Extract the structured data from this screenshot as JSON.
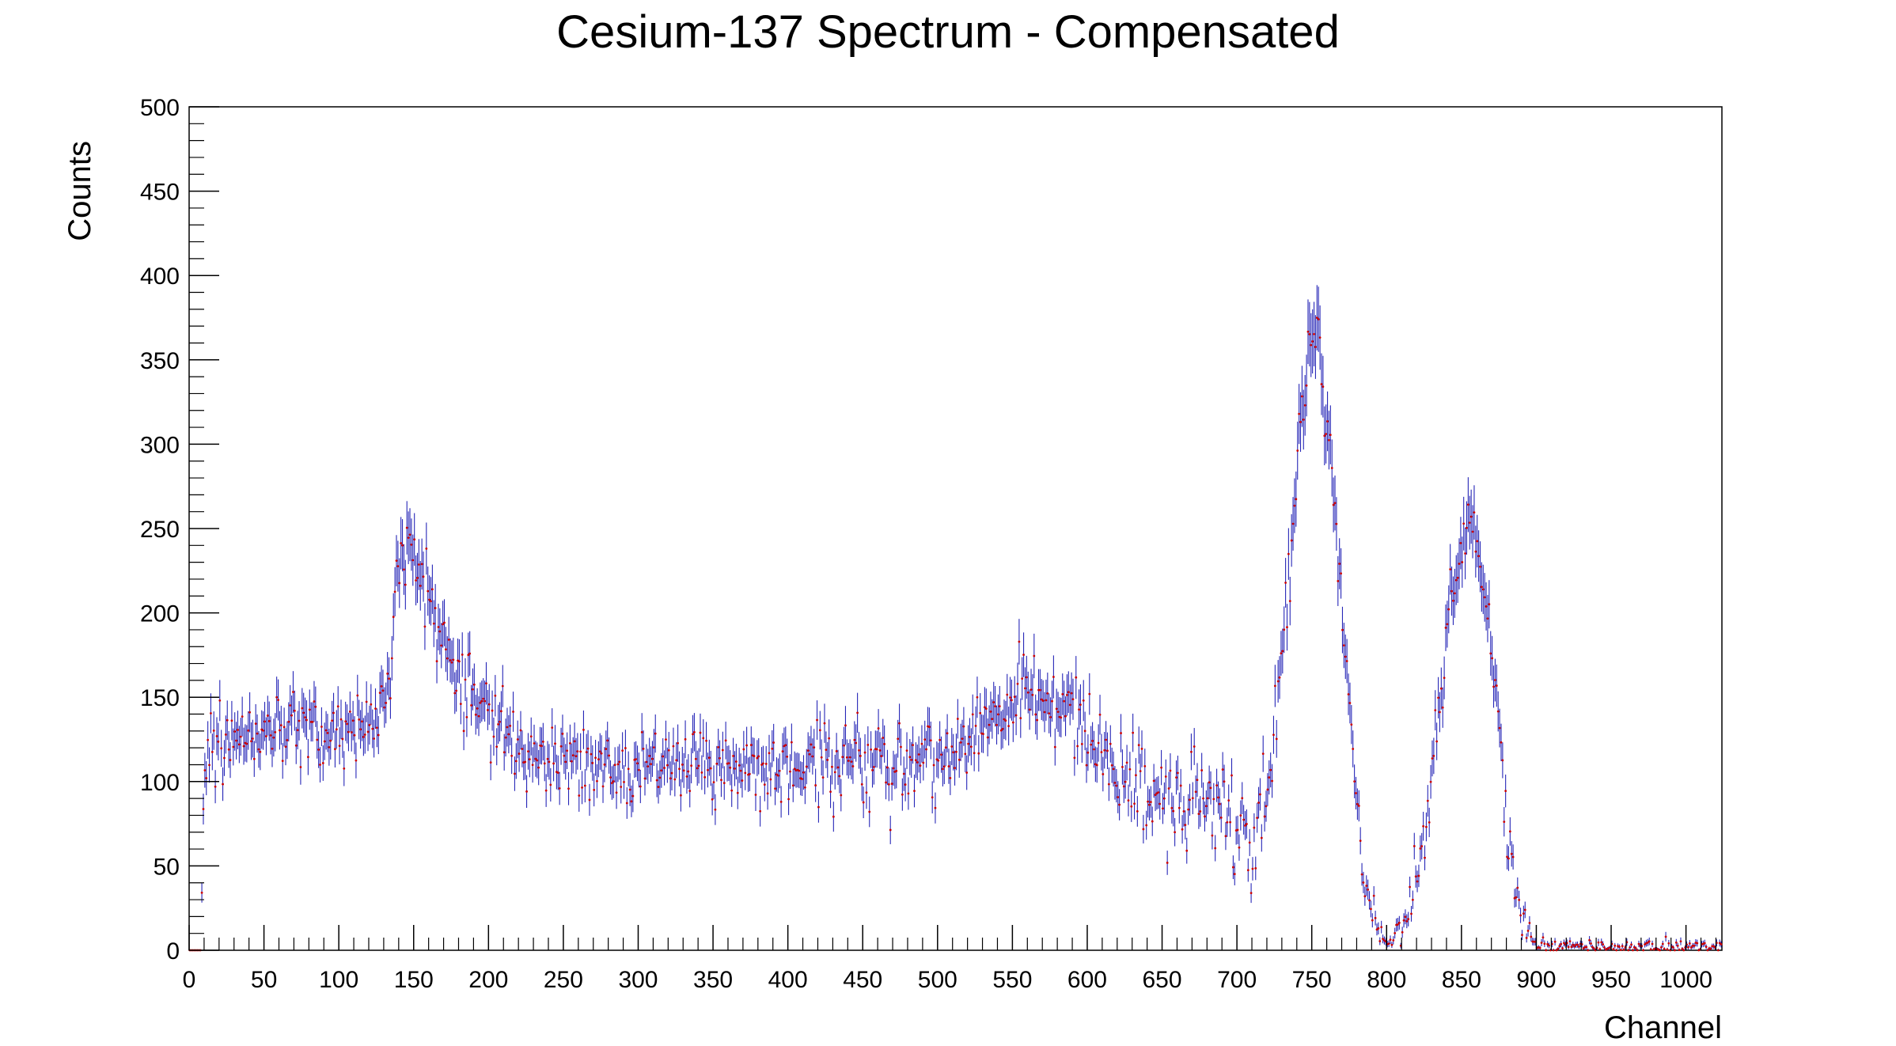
{
  "chart_data": {
    "type": "scatter",
    "title": "Cesium-137 Spectrum - Compensated",
    "xlabel": "Channel",
    "ylabel": "Counts",
    "xlim": [
      0,
      1024
    ],
    "ylim": [
      0,
      500
    ],
    "x_ticks": [
      "0",
      "50",
      "100",
      "150",
      "200",
      "250",
      "300",
      "350",
      "400",
      "450",
      "500",
      "550",
      "600",
      "650",
      "700",
      "750",
      "800",
      "850",
      "900",
      "950",
      "1000"
    ],
    "y_ticks": [
      "0",
      "50",
      "100",
      "150",
      "200",
      "250",
      "300",
      "350",
      "400",
      "450",
      "500"
    ],
    "grid": false,
    "legend": "none",
    "series": [
      {
        "style": "points with error bars",
        "marker_color": "#cc0000",
        "line_color": "#0000aa",
        "bin_width": 1,
        "envelope": {
          "x": [
            0,
            8,
            10,
            14,
            20,
            30,
            40,
            50,
            60,
            70,
            80,
            90,
            100,
            110,
            120,
            130,
            135,
            140,
            145,
            148,
            152,
            155,
            160,
            170,
            180,
            190,
            200,
            220,
            250,
            280,
            300,
            330,
            350,
            380,
            400,
            420,
            450,
            480,
            500,
            520,
            540,
            560,
            575,
            590,
            600,
            610,
            620,
            640,
            660,
            680,
            690,
            700,
            705,
            710,
            715,
            718,
            722,
            726,
            730,
            735,
            740,
            745,
            750,
            753,
            756,
            760,
            765,
            770,
            775,
            780,
            785,
            790,
            795,
            800,
            805,
            810,
            815,
            820,
            825,
            830,
            835,
            840,
            845,
            850,
            853,
            856,
            860,
            865,
            870,
            875,
            880,
            885,
            890,
            895,
            900,
            910,
            950,
            1000,
            1024
          ],
          "y": [
            0,
            0,
            100,
            120,
            125,
            130,
            138,
            140,
            138,
            135,
            132,
            130,
            130,
            132,
            135,
            138,
            175,
            228,
            240,
            250,
            232,
            222,
            210,
            185,
            160,
            150,
            140,
            126,
            112,
            110,
            110,
            110,
            108,
            107,
            108,
            110,
            112,
            115,
            118,
            125,
            140,
            148,
            150,
            148,
            135,
            115,
            100,
            95,
            90,
            87,
            80,
            70,
            65,
            60,
            60,
            80,
            100,
            140,
            175,
            225,
            285,
            335,
            362,
            368,
            350,
            320,
            270,
            210,
            140,
            90,
            50,
            25,
            10,
            5,
            8,
            15,
            25,
            45,
            70,
            105,
            140,
            185,
            220,
            245,
            255,
            258,
            250,
            220,
            180,
            120,
            75,
            40,
            20,
            10,
            3,
            2,
            2,
            2,
            2
          ]
        },
        "noise_amplitude": 12,
        "error_bar_scale": 1
      }
    ]
  }
}
